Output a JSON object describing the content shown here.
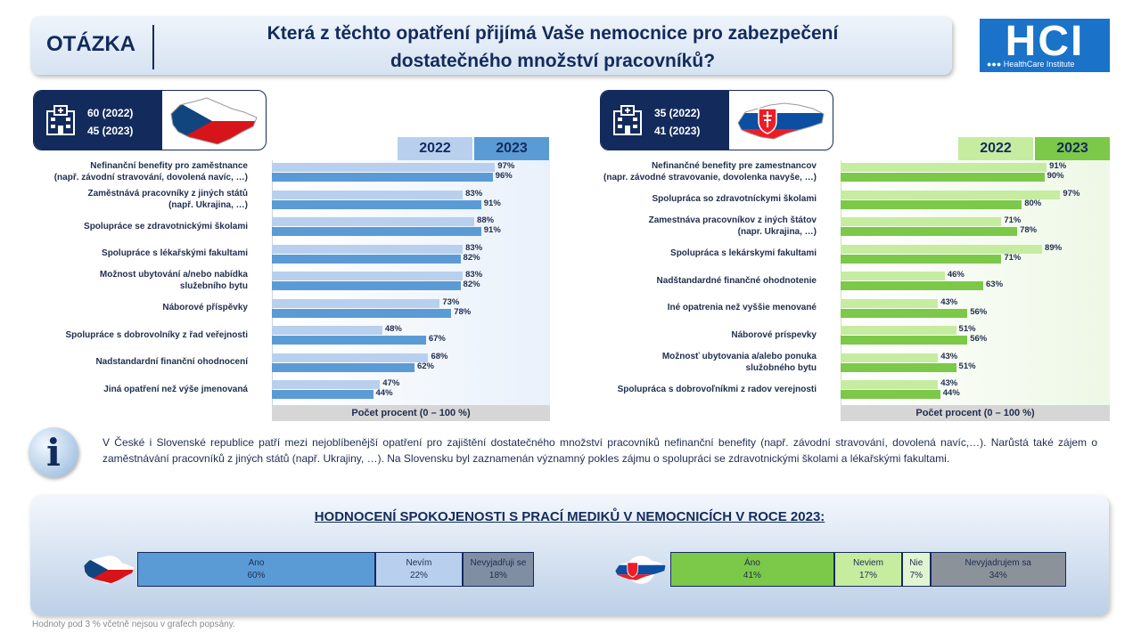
{
  "header": {
    "label": "OTÁZKA",
    "title_line1": "Která z těchto opatření přijímá Vaše nemocnice pro zabezpečení",
    "title_line2": "dostatečného množství pracovníků?",
    "logo_text": "HCI",
    "logo_sub": "●●● HealthCare Institute"
  },
  "cz_box": {
    "n2022": "60 (2022)",
    "n2023": "45 (2023)"
  },
  "sk_box": {
    "n2022": "35 (2022)",
    "n2023": "41 (2023)"
  },
  "years": {
    "y1": "2022",
    "y2": "2023"
  },
  "axis_note": "Počet procent  (0 – 100 %)",
  "colors": {
    "cz_2022": "#b8d0ee",
    "cz_2023": "#5b9bd5",
    "sk_2022": "#c6eca0",
    "sk_2023": "#7cc849",
    "navy": "#132b5c"
  },
  "chart_data": [
    {
      "type": "bar",
      "orientation": "horizontal",
      "country": "CZ",
      "categories": [
        [
          "Nefinanční benefity pro zaměstnance",
          "(např. závodní stravování, dovolená navíc, …)"
        ],
        [
          "Zaměstnává pracovníky z jiných států",
          "(např. Ukrajina, …)"
        ],
        [
          "Spolupráce se zdravotnickými školami"
        ],
        [
          "Spolupráce s lékařskými fakultami"
        ],
        [
          "Možnost ubytování a/nebo nabídka",
          "služebního bytu"
        ],
        [
          "Náborové příspěvky"
        ],
        [
          "Spolupráce s dobrovolníky z řad veřejnosti"
        ],
        [
          "Nadstandardní finanční ohodnocení"
        ],
        [
          "Jiná opatření než výše jmenovaná"
        ]
      ],
      "series": [
        {
          "name": "2022",
          "values": [
            97,
            83,
            88,
            83,
            83,
            73,
            48,
            68,
            47
          ]
        },
        {
          "name": "2023",
          "values": [
            96,
            91,
            91,
            82,
            82,
            78,
            67,
            62,
            44
          ]
        }
      ],
      "xlim": [
        0,
        100
      ],
      "xlabel": "Počet procent  (0 – 100 %)"
    },
    {
      "type": "bar",
      "orientation": "horizontal",
      "country": "SK",
      "categories": [
        [
          "Nefinančné benefity pre zamestnancov",
          "(napr. závodné stravovanie, dovolenka navyše, …)"
        ],
        [
          "Spolupráca so zdravotníckymi školami"
        ],
        [
          "Zamestnáva pracovníkov z iných štátov",
          "(napr. Ukrajina, …)"
        ],
        [
          "Spolupráca s lekárskymi fakultami"
        ],
        [
          "Nadštandardné finančné ohodnotenie"
        ],
        [
          "Iné opatrenia než vyššie menované"
        ],
        [
          "Náborové príspevky"
        ],
        [
          "Možnosť ubytovania a/alebo ponuka",
          "služobného bytu"
        ],
        [
          "Spolupráca s dobrovoľníkmi z radov verejnosti"
        ]
      ],
      "series": [
        {
          "name": "2022",
          "values": [
            91,
            97,
            71,
            89,
            46,
            43,
            51,
            43,
            43
          ]
        },
        {
          "name": "2023",
          "values": [
            90,
            80,
            78,
            71,
            63,
            56,
            56,
            51,
            44
          ]
        }
      ],
      "xlim": [
        0,
        100
      ],
      "xlabel": "Počet procent  (0 – 100 %)"
    },
    {
      "type": "bar",
      "orientation": "stacked-horizontal",
      "country": "CZ",
      "categories": [
        "Ano",
        "Nevím",
        "Nevyjadřuji se"
      ],
      "values": [
        60,
        22,
        18
      ]
    },
    {
      "type": "bar",
      "orientation": "stacked-horizontal",
      "country": "SK",
      "categories": [
        "Áno",
        "Neviem",
        "Nie",
        "Nevyjadrujem sa"
      ],
      "values": [
        41,
        17,
        7,
        34
      ]
    }
  ],
  "info": {
    "icon": "info-icon",
    "text": "V České i Slovenské republice patří mezi nejoblíbenější opatření pro zajištění dostatečného množství pracovníků nefinanční benefity (např. závodní stravování, dovolená navíc,…). Narůstá také zájem o zaměstnávání pracovníků z jiných států (např. Ukrajiny, …). Na Slovensku byl zaznamenán významný pokles zájmu o spolupráci se zdravotnickými školami a lékařskými fakultami."
  },
  "satisfaction": {
    "title": "HODNOCENÍ SPOKOJENOSTI S PRACÍ MEDIKŮ V NEMOCNICÍCH V ROCE 2023:"
  },
  "footnote": "Hodnoty pod 3 % včetně nejsou v grafech popsány."
}
